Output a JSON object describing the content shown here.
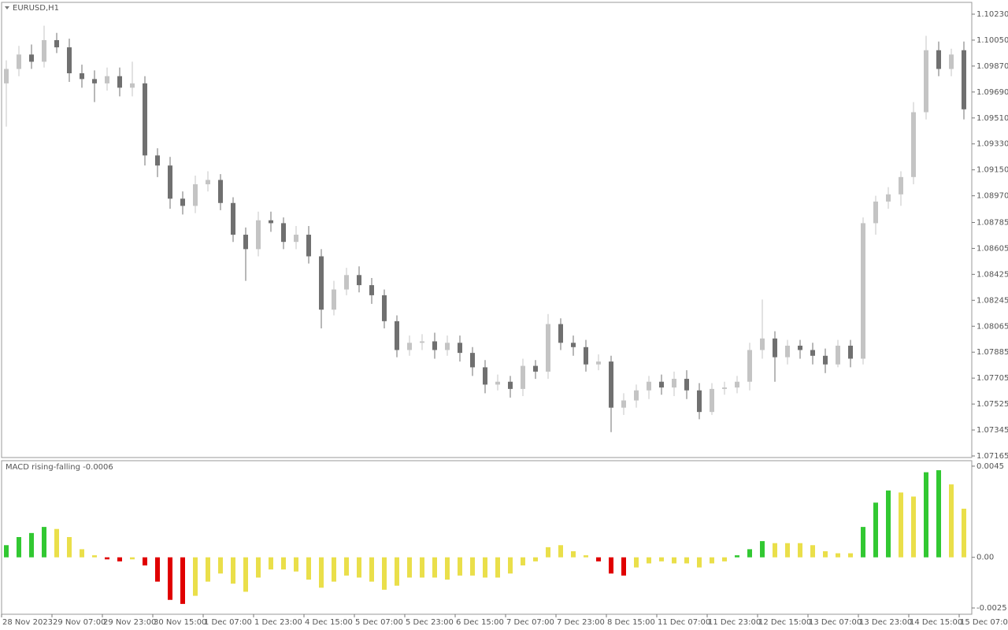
{
  "chart_data": [
    {
      "type": "candlestick",
      "title": "EURUSD,H1",
      "categories": [
        "28 Nov 2023",
        null,
        null,
        null,
        "29 Nov 07:00",
        null,
        null,
        null,
        "29 Nov 23:00",
        null,
        null,
        null,
        "30 Nov 15:00",
        null,
        null,
        null,
        "1 Dec 07:00",
        null,
        null,
        null,
        "1 Dec 23:00",
        null,
        null,
        null,
        "4 Dec 15:00",
        null,
        null,
        null,
        "5 Dec 07:00",
        null,
        null,
        null,
        "5 Dec 23:00",
        null,
        null,
        null,
        "6 Dec 15:00",
        null,
        null,
        null,
        "7 Dec 07:00",
        null,
        null,
        null,
        "7 Dec 23:00",
        null,
        null,
        null,
        "8 Dec 15:00",
        null,
        null,
        null,
        "11 Dec 07:00",
        null,
        null,
        null,
        "11 Dec 23:00",
        null,
        null,
        null,
        "12 Dec 15:00",
        null,
        null,
        null,
        "13 Dec 07:00",
        null,
        null,
        null,
        "13 Dec 23:00",
        null,
        null,
        null,
        "14 Dec 15:00",
        null,
        null,
        null,
        "15 Dec 07:00"
      ],
      "open": [
        1.0975,
        1.0985,
        1.0995,
        1.099,
        1.1005,
        1.1,
        1.0982,
        1.0978,
        1.0975,
        1.098,
        1.0972,
        1.0975,
        1.0925,
        1.0918,
        1.0895,
        1.089,
        1.0905,
        1.0908,
        1.0892,
        1.087,
        1.086,
        1.088,
        1.0878,
        1.0865,
        1.087,
        1.0855,
        1.0818,
        1.0832,
        1.0842,
        1.0835,
        1.0828,
        1.081,
        1.079,
        1.0795,
        1.0796,
        1.079,
        1.0795,
        1.0788,
        1.0778,
        1.0766,
        1.0768,
        1.0763,
        1.0779,
        1.0775,
        1.0808,
        1.0795,
        1.0792,
        1.078,
        1.0782,
        1.075,
        1.0755,
        1.0762,
        1.0768,
        1.0764,
        1.077,
        1.0762,
        1.0747,
        1.0763,
        1.0764,
        1.0768,
        1.079,
        1.0798,
        1.0785,
        1.0793,
        1.079,
        1.0786,
        1.078,
        1.0793,
        1.0784,
        1.0878,
        1.0893,
        1.0898,
        1.091,
        1.0955,
        1.0998,
        1.0985,
        1.0998
      ],
      "high": [
        1.0991,
        1.1001,
        1.1002,
        1.1015,
        1.101,
        1.1006,
        1.0988,
        1.0984,
        1.0986,
        1.0986,
        1.099,
        1.098,
        1.093,
        1.0924,
        1.09,
        1.0911,
        1.0914,
        1.0912,
        1.0896,
        1.0875,
        1.0886,
        1.0886,
        1.0882,
        1.0876,
        1.0876,
        1.086,
        1.0838,
        1.0847,
        1.0848,
        1.084,
        1.0832,
        1.0814,
        1.08,
        1.0801,
        1.0802,
        1.08,
        1.08,
        1.0792,
        1.0783,
        1.0773,
        1.0772,
        1.0784,
        1.0783,
        1.0815,
        1.0812,
        1.08,
        1.0797,
        1.0787,
        1.0786,
        1.076,
        1.0766,
        1.0772,
        1.0773,
        1.0775,
        1.0776,
        1.0767,
        1.0767,
        1.0768,
        1.0772,
        1.0795,
        1.0825,
        1.0803,
        1.0797,
        1.0797,
        1.0795,
        1.0791,
        1.0797,
        1.0797,
        1.0882,
        1.0897,
        1.0903,
        1.0914,
        1.0962,
        1.1008,
        1.1004,
        1.0999,
        1.1004
      ],
      "low": [
        1.0945,
        1.098,
        1.0985,
        1.0986,
        1.0996,
        1.0976,
        1.0972,
        1.0962,
        1.097,
        1.0966,
        1.0966,
        1.0918,
        1.091,
        1.0888,
        1.0884,
        1.0885,
        1.09,
        1.0887,
        1.0865,
        1.0838,
        1.0855,
        1.0872,
        1.086,
        1.086,
        1.085,
        1.0805,
        1.0814,
        1.0828,
        1.083,
        1.0822,
        1.0805,
        1.0785,
        1.0786,
        1.079,
        1.0784,
        1.0786,
        1.0782,
        1.0772,
        1.076,
        1.0762,
        1.0757,
        1.0758,
        1.077,
        1.077,
        1.079,
        1.0786,
        1.0775,
        1.0776,
        1.0733,
        1.0745,
        1.075,
        1.0756,
        1.0759,
        1.0758,
        1.0756,
        1.0742,
        1.0745,
        1.0759,
        1.076,
        1.0762,
        1.0784,
        1.0768,
        1.078,
        1.0784,
        1.078,
        1.0774,
        1.0778,
        1.0778,
        1.078,
        1.087,
        1.0888,
        1.089,
        1.0905,
        1.095,
        1.098,
        1.098,
        1.095
      ],
      "close": [
        1.0985,
        1.0995,
        1.099,
        1.1005,
        1.1,
        1.0982,
        1.0978,
        1.0975,
        1.098,
        1.0972,
        1.0975,
        1.0925,
        1.0918,
        1.0895,
        1.089,
        1.0905,
        1.0908,
        1.0892,
        1.087,
        1.086,
        1.088,
        1.0878,
        1.0865,
        1.087,
        1.0855,
        1.0818,
        1.0832,
        1.0842,
        1.0835,
        1.0828,
        1.081,
        1.079,
        1.0795,
        1.0796,
        1.079,
        1.0795,
        1.0788,
        1.0778,
        1.0766,
        1.0768,
        1.0763,
        1.0779,
        1.0775,
        1.0808,
        1.0795,
        1.0792,
        1.078,
        1.0782,
        1.075,
        1.0755,
        1.0762,
        1.0768,
        1.0764,
        1.077,
        1.0762,
        1.0747,
        1.0763,
        1.0764,
        1.0768,
        1.079,
        1.0798,
        1.0785,
        1.0793,
        1.079,
        1.0786,
        1.078,
        1.0793,
        1.0784,
        1.0878,
        1.0893,
        1.0898,
        1.091,
        1.0955,
        1.0998,
        1.0985,
        1.0995,
        1.0957
      ],
      "up_color": "#c4c4c4",
      "down_color": "#707070",
      "ylim": [
        1.07154,
        1.10312
      ],
      "yticks": [
        {
          "value": 1.1023,
          "label": "1.10230"
        },
        {
          "value": 1.1005,
          "label": "1.10050"
        },
        {
          "value": 1.0987,
          "label": "1.09870"
        },
        {
          "value": 1.0969,
          "label": "1.09690"
        },
        {
          "value": 1.0951,
          "label": "1.09510"
        },
        {
          "value": 1.0933,
          "label": "1.09330"
        },
        {
          "value": 1.0915,
          "label": "1.09150"
        },
        {
          "value": 1.0897,
          "label": "1.08970"
        },
        1.08785,
        1.08605,
        1.08425,
        1.08245,
        1.08065,
        1.07885,
        1.07705,
        1.07525,
        1.07345,
        1.07165
      ]
    },
    {
      "type": "bar",
      "title": "MACD rising-falling -0.0006",
      "values": [
        0.0006,
        0.001,
        0.0012,
        0.0015,
        0.0014,
        0.001,
        0.0004,
        0.0001,
        -0.0001,
        -0.0002,
        -0.0001,
        -0.0004,
        -0.0012,
        -0.0021,
        -0.0023,
        -0.0019,
        -0.0012,
        -0.0008,
        -0.0013,
        -0.0017,
        -0.001,
        -0.0006,
        -0.0006,
        -0.0007,
        -0.0011,
        -0.0015,
        -0.0012,
        -0.0009,
        -0.001,
        -0.0012,
        -0.0016,
        -0.0014,
        -0.001,
        -0.001,
        -0.001,
        -0.0011,
        -0.0009,
        -0.0009,
        -0.001,
        -0.001,
        -0.0008,
        -0.0004,
        -0.0002,
        0.0005,
        0.0006,
        0.0003,
        0.0001,
        -0.0002,
        -0.0008,
        -0.0009,
        -0.0005,
        -0.0003,
        -0.0002,
        -0.0003,
        -0.0003,
        -0.0005,
        -0.0003,
        -0.0002,
        0.0001,
        0.0004,
        0.0008,
        0.0007,
        0.0007,
        0.0007,
        0.0006,
        0.0003,
        0.0002,
        0.0002,
        0.0015,
        0.0027,
        0.0033,
        0.0032,
        0.003,
        0.0042,
        0.0043,
        0.0036,
        0.0024
      ],
      "colors": [
        "#32c832",
        "#32c832",
        "#32c832",
        "#32c832",
        "#eadf4a",
        "#eadf4a",
        "#eadf4a",
        "#eadf4a",
        "#e00000",
        "#e00000",
        "#eadf4a",
        "#e00000",
        "#e00000",
        "#e00000",
        "#e00000",
        "#eadf4a",
        "#eadf4a",
        "#eadf4a",
        "#eadf4a",
        "#eadf4a",
        "#eadf4a",
        "#eadf4a",
        "#eadf4a",
        "#eadf4a",
        "#eadf4a",
        "#eadf4a",
        "#eadf4a",
        "#eadf4a",
        "#eadf4a",
        "#eadf4a",
        "#eadf4a",
        "#eadf4a",
        "#eadf4a",
        "#eadf4a",
        "#eadf4a",
        "#eadf4a",
        "#eadf4a",
        "#eadf4a",
        "#eadf4a",
        "#eadf4a",
        "#eadf4a",
        "#eadf4a",
        "#eadf4a",
        "#eadf4a",
        "#eadf4a",
        "#eadf4a",
        "#eadf4a",
        "#e00000",
        "#e00000",
        "#e00000",
        "#eadf4a",
        "#eadf4a",
        "#eadf4a",
        "#eadf4a",
        "#eadf4a",
        "#eadf4a",
        "#eadf4a",
        "#eadf4a",
        "#32c832",
        "#32c832",
        "#32c832",
        "#eadf4a",
        "#eadf4a",
        "#eadf4a",
        "#eadf4a",
        "#eadf4a",
        "#eadf4a",
        "#eadf4a",
        "#32c832",
        "#32c832",
        "#32c832",
        "#eadf4a",
        "#eadf4a",
        "#32c832",
        "#32c832",
        "#eadf4a",
        "#eadf4a"
      ],
      "ylim": [
        -0.00281,
        0.00477
      ],
      "yticks": [
        0.0045,
        {
          "value": 0,
          "label": "0.00"
        },
        -0.0025
      ]
    }
  ]
}
